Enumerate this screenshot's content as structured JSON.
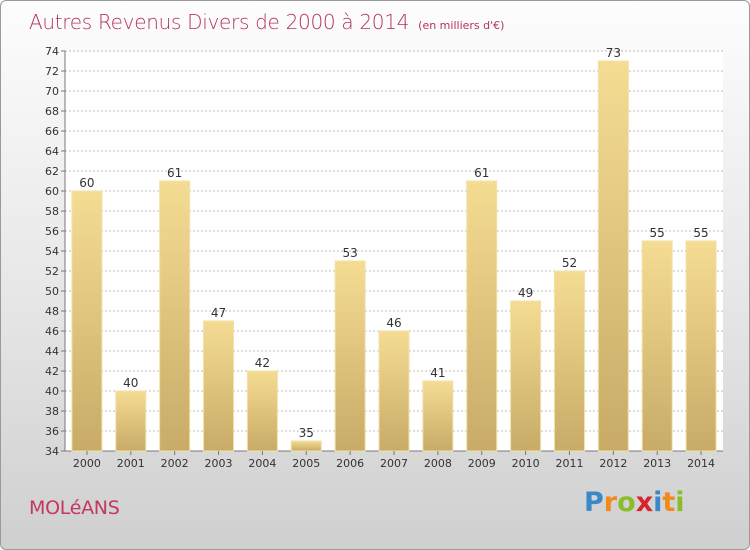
{
  "header": {
    "title": "Autres Revenus Divers de 2000 à 2014",
    "subtitle": "(en milliers d'€)"
  },
  "footer": {
    "town": "MOLéANS",
    "logo": "Proxiti"
  },
  "colors": {
    "title": "#b5335e",
    "bar_light": "#f5dc93",
    "bar_dark": "#c7ab67",
    "grid": "#bdbdbd"
  },
  "chart_data": {
    "type": "bar",
    "categories": [
      "2000",
      "2001",
      "2002",
      "2003",
      "2004",
      "2005",
      "2006",
      "2007",
      "2008",
      "2009",
      "2010",
      "2011",
      "2012",
      "2013",
      "2014"
    ],
    "values": [
      60,
      40,
      61,
      47,
      42,
      35,
      53,
      46,
      41,
      61,
      49,
      52,
      73,
      55,
      55
    ],
    "ylim": [
      34,
      74
    ],
    "ytick_step": 2,
    "grid": true,
    "data_labels": true,
    "title": "Autres Revenus Divers de 2000 à 2014",
    "subtitle": "(en milliers d'€)"
  }
}
